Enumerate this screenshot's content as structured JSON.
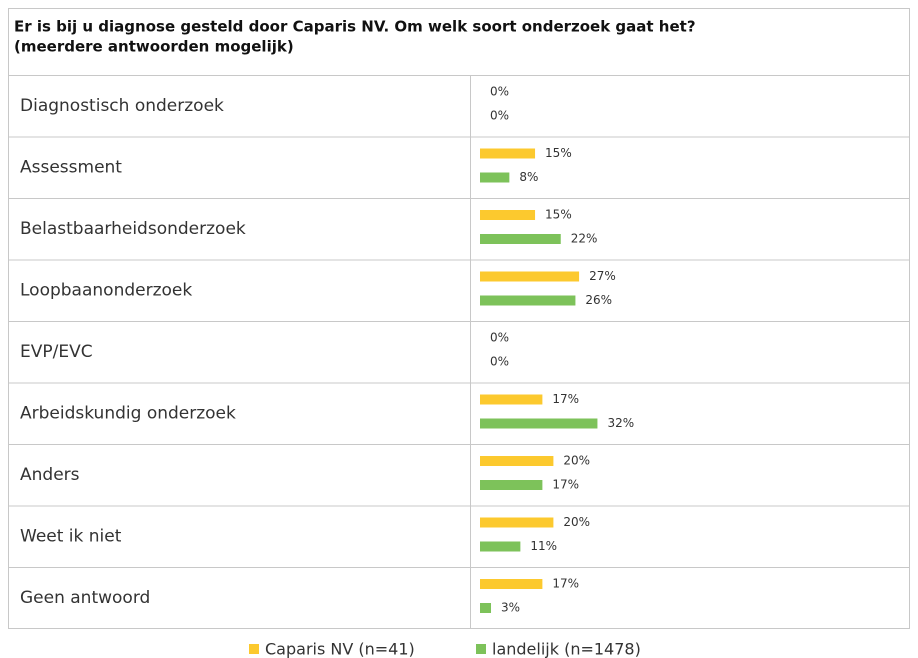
{
  "chart_data": {
    "type": "bar",
    "title": "Er is bij u diagnose gesteld door Caparis NV. Om welk soort onderzoek gaat het?",
    "subtitle": "(meerdere antwoorden mogelijk)",
    "categories": [
      "Diagnostisch onderzoek",
      "Assessment",
      "Belastbaarheidsonderzoek",
      "Loopbaanonderzoek",
      "EVP/EVC",
      "Arbeidskundig onderzoek",
      "Anders",
      "Weet ik niet",
      "Geen antwoord"
    ],
    "series": [
      {
        "name": "Caparis NV (n=41)",
        "color": "#fcc92e",
        "values": [
          0,
          15,
          15,
          27,
          0,
          17,
          20,
          20,
          17
        ],
        "value_labels": [
          "0%",
          "15%",
          "15%",
          "27%",
          "0%",
          "17%",
          "20%",
          "20%",
          "17%"
        ]
      },
      {
        "name": "landelijk (n=1478)",
        "color": "#7dc25a",
        "values": [
          0,
          8,
          22,
          26,
          0,
          32,
          17,
          11,
          3
        ],
        "value_labels": [
          "0%",
          "8%",
          "22%",
          "26%",
          "0%",
          "32%",
          "17%",
          "11%",
          "3%"
        ]
      }
    ]
  }
}
